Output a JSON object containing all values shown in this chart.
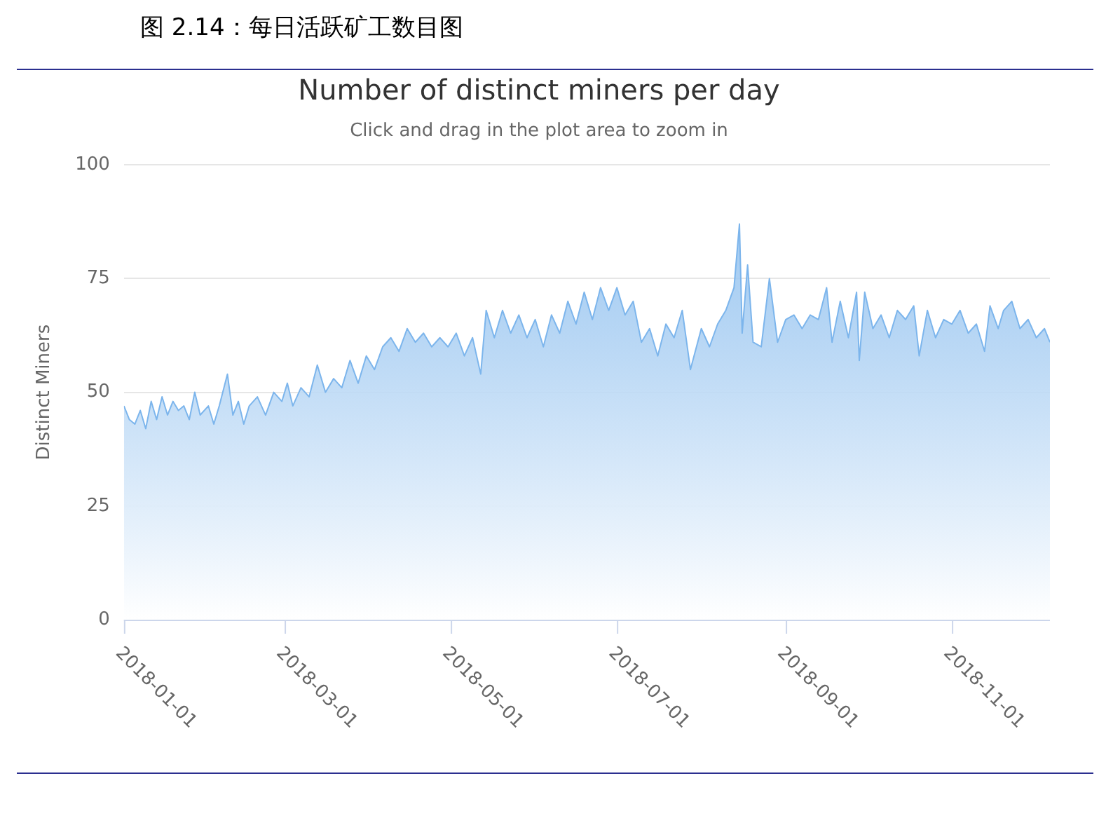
{
  "chart_data": {
    "type": "area",
    "title": "Number of distinct miners per day",
    "subtitle": "Click and drag in the plot area to zoom in",
    "ylabel": "Distinct Miners",
    "annotations": [
      "图 2.14：每日活跃矿工数目图"
    ],
    "x": [
      "2018-01-01",
      "2018-01-03",
      "2018-01-05",
      "2018-01-07",
      "2018-01-09",
      "2018-01-11",
      "2018-01-13",
      "2018-01-15",
      "2018-01-17",
      "2018-01-19",
      "2018-01-21",
      "2018-01-23",
      "2018-01-25",
      "2018-01-27",
      "2018-01-29",
      "2018-02-01",
      "2018-02-03",
      "2018-02-05",
      "2018-02-08",
      "2018-02-10",
      "2018-02-12",
      "2018-02-14",
      "2018-02-16",
      "2018-02-19",
      "2018-02-22",
      "2018-02-25",
      "2018-02-28",
      "2018-03-02",
      "2018-03-04",
      "2018-03-07",
      "2018-03-10",
      "2018-03-13",
      "2018-03-16",
      "2018-03-19",
      "2018-03-22",
      "2018-03-25",
      "2018-03-28",
      "2018-03-31",
      "2018-04-03",
      "2018-04-06",
      "2018-04-09",
      "2018-04-12",
      "2018-04-15",
      "2018-04-18",
      "2018-04-21",
      "2018-04-24",
      "2018-04-27",
      "2018-04-30",
      "2018-05-03",
      "2018-05-06",
      "2018-05-09",
      "2018-05-12",
      "2018-05-14",
      "2018-05-17",
      "2018-05-20",
      "2018-05-23",
      "2018-05-26",
      "2018-05-29",
      "2018-06-01",
      "2018-06-04",
      "2018-06-07",
      "2018-06-10",
      "2018-06-13",
      "2018-06-16",
      "2018-06-19",
      "2018-06-22",
      "2018-06-25",
      "2018-06-28",
      "2018-07-01",
      "2018-07-04",
      "2018-07-07",
      "2018-07-10",
      "2018-07-13",
      "2018-07-16",
      "2018-07-19",
      "2018-07-22",
      "2018-07-25",
      "2018-07-28",
      "2018-08-01",
      "2018-08-04",
      "2018-08-07",
      "2018-08-10",
      "2018-08-13",
      "2018-08-15",
      "2018-08-16",
      "2018-08-18",
      "2018-08-20",
      "2018-08-23",
      "2018-08-26",
      "2018-08-29",
      "2018-09-01",
      "2018-09-04",
      "2018-09-07",
      "2018-09-10",
      "2018-09-13",
      "2018-09-16",
      "2018-09-18",
      "2018-09-21",
      "2018-09-24",
      "2018-09-27",
      "2018-09-28",
      "2018-09-30",
      "2018-10-03",
      "2018-10-06",
      "2018-10-09",
      "2018-10-12",
      "2018-10-15",
      "2018-10-18",
      "2018-10-20",
      "2018-10-23",
      "2018-10-26",
      "2018-10-29",
      "2018-11-01",
      "2018-11-04",
      "2018-11-07",
      "2018-11-10",
      "2018-11-13",
      "2018-11-15",
      "2018-11-18",
      "2018-11-20",
      "2018-11-23",
      "2018-11-26",
      "2018-11-29",
      "2018-12-02",
      "2018-12-05",
      "2018-12-07"
    ],
    "series": [
      {
        "color": "#7cb5ec",
        "values": [
          47,
          44,
          43,
          46,
          42,
          48,
          44,
          49,
          45,
          48,
          46,
          47,
          44,
          50,
          45,
          47,
          43,
          47,
          54,
          45,
          48,
          43,
          47,
          49,
          45,
          50,
          48,
          52,
          47,
          51,
          49,
          56,
          50,
          53,
          51,
          57,
          52,
          58,
          55,
          60,
          62,
          59,
          64,
          61,
          63,
          60,
          62,
          60,
          63,
          58,
          62,
          54,
          68,
          62,
          68,
          63,
          67,
          62,
          66,
          60,
          67,
          63,
          70,
          65,
          72,
          66,
          73,
          68,
          73,
          67,
          70,
          61,
          64,
          58,
          65,
          62,
          68,
          55,
          64,
          60,
          65,
          68,
          73,
          87,
          63,
          78,
          61,
          60,
          75,
          61,
          66,
          67,
          64,
          67,
          66,
          73,
          61,
          70,
          62,
          72,
          57,
          72,
          64,
          67,
          62,
          68,
          66,
          69,
          58,
          68,
          62,
          66,
          65,
          68,
          63,
          65,
          59,
          69,
          64,
          68,
          70,
          64,
          66,
          62,
          64,
          61
        ]
      }
    ],
    "xlim": [
      "2018-01-01",
      "2018-12-07"
    ],
    "xticks": [
      "2018-01-01",
      "2018-03-01",
      "2018-05-01",
      "2018-07-01",
      "2018-09-01",
      "2018-11-01"
    ],
    "ylim": [
      0,
      100
    ],
    "yticks": [
      0,
      25,
      50,
      75,
      100
    ],
    "grid": "y",
    "legend": false,
    "marker": "none",
    "line_style": "solid"
  }
}
